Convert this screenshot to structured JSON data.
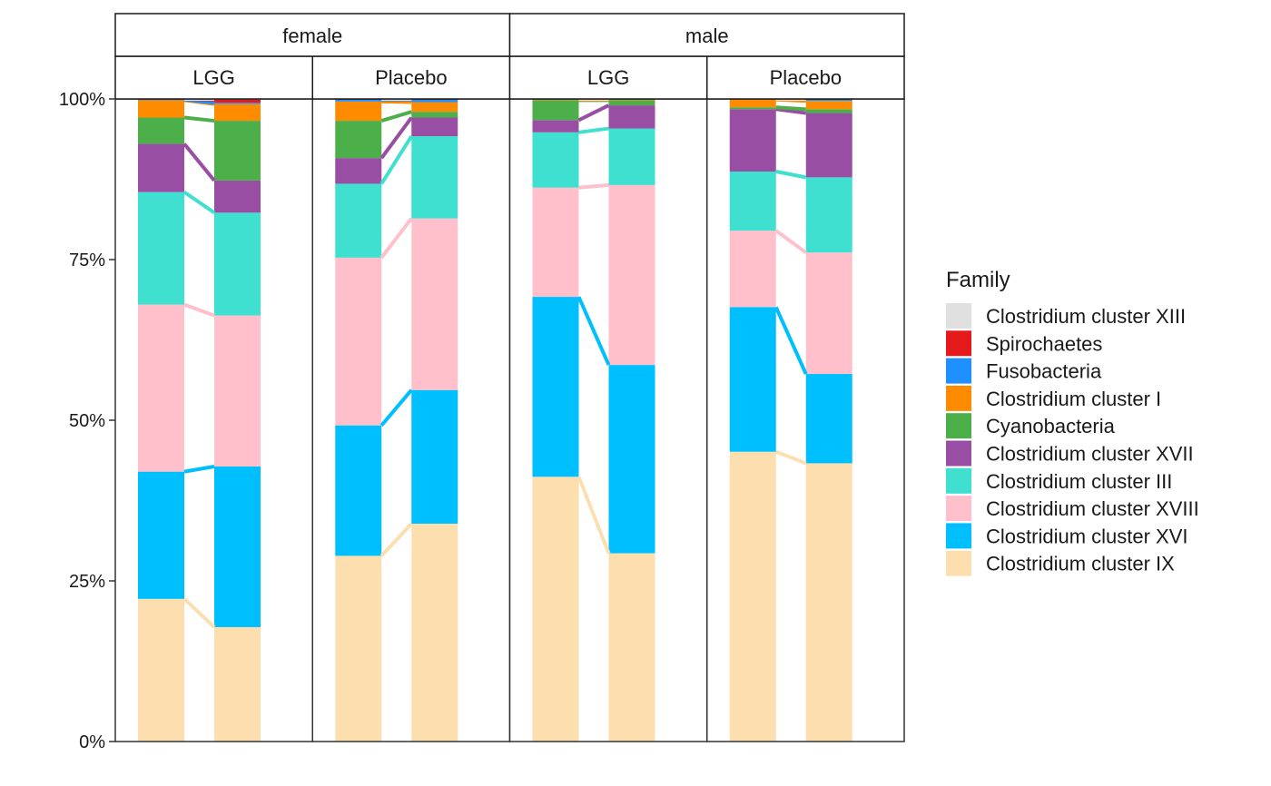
{
  "chart_data": {
    "type": "bar",
    "stacked": true,
    "facet_rows": [
      "female",
      "male"
    ],
    "facet_cols": [
      "LGG",
      "Placebo"
    ],
    "y_ticks": [
      "0%",
      "25%",
      "50%",
      "75%",
      "100%"
    ],
    "ylim": [
      0,
      1
    ],
    "legend": {
      "title": "Family",
      "placement": "right"
    },
    "families": [
      {
        "name": "Clostridium cluster XIII",
        "color": "#E0E0E0"
      },
      {
        "name": "Spirochaetes",
        "color": "#E41A1C"
      },
      {
        "name": "Fusobacteria",
        "color": "#1E90FF"
      },
      {
        "name": "Clostridium cluster I",
        "color": "#FF8C00"
      },
      {
        "name": "Cyanobacteria",
        "color": "#4DAF4A"
      },
      {
        "name": "Clostridium cluster XVII",
        "color": "#984EA3"
      },
      {
        "name": "Clostridium cluster III",
        "color": "#40E0D0"
      },
      {
        "name": "Clostridium cluster XVIII",
        "color": "#FFC0CB"
      },
      {
        "name": "Clostridium cluster XVI",
        "color": "#00BFFF"
      },
      {
        "name": "Clostridium cluster IX",
        "color": "#FDDEAE"
      }
    ],
    "stack_order_bottom_to_top": [
      "Clostridium cluster IX",
      "Clostridium cluster XVI",
      "Clostridium cluster XVIII",
      "Clostridium cluster III",
      "Clostridium cluster XVII",
      "Cyanobacteria",
      "Clostridium cluster I",
      "Fusobacteria",
      "Spirochaetes",
      "Clostridium cluster XIII"
    ],
    "panels": [
      {
        "sex": "female",
        "group": "LGG",
        "bars": [
          {
            "Clostridium cluster IX": 0.222,
            "Clostridium cluster XVI": 0.198,
            "Clostridium cluster XVIII": 0.26,
            "Clostridium cluster III": 0.175,
            "Clostridium cluster XVII": 0.075,
            "Cyanobacteria": 0.041,
            "Clostridium cluster I": 0.027,
            "Fusobacteria": 0.001,
            "Spirochaetes": 0.001,
            "Clostridium cluster XIII": 0
          },
          {
            "Clostridium cluster IX": 0.178,
            "Clostridium cluster XVI": 0.25,
            "Clostridium cluster XVIII": 0.235,
            "Clostridium cluster III": 0.16,
            "Clostridium cluster XVII": 0.05,
            "Cyanobacteria": 0.093,
            "Clostridium cluster I": 0.026,
            "Fusobacteria": 0.002,
            "Spirochaetes": 0.005,
            "Clostridium cluster XIII": 0.001
          }
        ]
      },
      {
        "sex": "female",
        "group": "Placebo",
        "bars": [
          {
            "Clostridium cluster IX": 0.289,
            "Clostridium cluster XVI": 0.203,
            "Clostridium cluster XVIII": 0.261,
            "Clostridium cluster III": 0.115,
            "Clostridium cluster XVII": 0.04,
            "Cyanobacteria": 0.058,
            "Clostridium cluster I": 0.03,
            "Fusobacteria": 0.003,
            "Spirochaetes": 0.001,
            "Clostridium cluster XIII": 0
          },
          {
            "Clostridium cluster IX": 0.339,
            "Clostridium cluster XVI": 0.208,
            "Clostridium cluster XVIII": 0.267,
            "Clostridium cluster III": 0.128,
            "Clostridium cluster XVII": 0.029,
            "Cyanobacteria": 0.009,
            "Clostridium cluster I": 0.015,
            "Fusobacteria": 0.004,
            "Spirochaetes": 0.001,
            "Clostridium cluster XIII": 0
          }
        ]
      },
      {
        "sex": "male",
        "group": "LGG",
        "bars": [
          {
            "Clostridium cluster IX": 0.412,
            "Clostridium cluster XVI": 0.28,
            "Clostridium cluster XVIII": 0.17,
            "Clostridium cluster III": 0.086,
            "Clostridium cluster XVII": 0.019,
            "Cyanobacteria": 0.031,
            "Clostridium cluster I": 0.001,
            "Fusobacteria": 0.001,
            "Spirochaetes": 0,
            "Clostridium cluster XIII": 0
          },
          {
            "Clostridium cluster IX": 0.293,
            "Clostridium cluster XVI": 0.293,
            "Clostridium cluster XVIII": 0.28,
            "Clostridium cluster III": 0.088,
            "Clostridium cluster XVII": 0.036,
            "Cyanobacteria": 0.008,
            "Clostridium cluster I": 0.001,
            "Fusobacteria": 0.001,
            "Spirochaetes": 0,
            "Clostridium cluster XIII": 0
          }
        ]
      },
      {
        "sex": "male",
        "group": "Placebo",
        "bars": [
          {
            "Clostridium cluster IX": 0.451,
            "Clostridium cluster XVI": 0.225,
            "Clostridium cluster XVIII": 0.119,
            "Clostridium cluster III": 0.092,
            "Clostridium cluster XVII": 0.097,
            "Cyanobacteria": 0.003,
            "Clostridium cluster I": 0.012,
            "Fusobacteria": 0.001,
            "Spirochaetes": 0,
            "Clostridium cluster XIII": 0
          },
          {
            "Clostridium cluster IX": 0.433,
            "Clostridium cluster XVI": 0.139,
            "Clostridium cluster XVIII": 0.189,
            "Clostridium cluster III": 0.117,
            "Clostridium cluster XVII": 0.1,
            "Cyanobacteria": 0.006,
            "Clostridium cluster I": 0.013,
            "Fusobacteria": 0.003,
            "Spirochaetes": 0,
            "Clostridium cluster XIII": 0
          }
        ]
      }
    ]
  }
}
